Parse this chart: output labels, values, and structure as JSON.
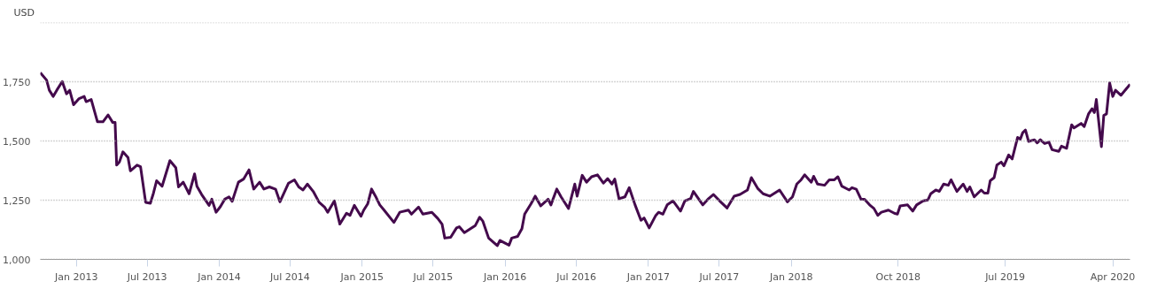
{
  "chart_data": {
    "type": "line",
    "ylabel": "USD",
    "grid": "y",
    "xlim": [
      "2012-10-01",
      "2020-05-15"
    ],
    "xticks": [
      {
        "value": "2013-01-01",
        "label": "Jan 2013"
      },
      {
        "value": "2013-07-01",
        "label": "Jul 2013"
      },
      {
        "value": "2014-01-01",
        "label": "Jan 2014"
      },
      {
        "value": "2014-07-01",
        "label": "Jul 2014"
      },
      {
        "value": "2015-01-01",
        "label": "Jan 2015"
      },
      {
        "value": "2015-07-01",
        "label": "Jul 2015"
      },
      {
        "value": "2016-01-01",
        "label": "Jan 2016"
      },
      {
        "value": "2016-07-01",
        "label": "Jul 2016"
      },
      {
        "value": "2017-01-01",
        "label": "Jan 2017"
      },
      {
        "value": "2017-07-01",
        "label": "Jul 2017"
      },
      {
        "value": "2018-01-01",
        "label": "Jan 2018"
      },
      {
        "value": "2018-10-01",
        "label": "Oct 2018"
      },
      {
        "value": "2019-07-01",
        "label": "Jul 2019"
      },
      {
        "value": "2020-04-01",
        "label": "Apr 2020"
      }
    ],
    "ylim": [
      1000,
      2000
    ],
    "yticks": [
      {
        "value": 1000,
        "label": "1,000"
      },
      {
        "value": 1250,
        "label": "1,250"
      },
      {
        "value": 1500,
        "label": "1,500"
      },
      {
        "value": 1750,
        "label": "1,750"
      },
      {
        "value": 2000,
        "label": null
      }
    ],
    "x": [
      "2012-10-01",
      "2012-10-17",
      "2012-10-24",
      "2012-11-03",
      "2012-11-12",
      "2012-11-26",
      "2012-12-07",
      "2012-12-15",
      "2012-12-25",
      "2013-01-08",
      "2013-01-21",
      "2013-01-26",
      "2013-02-08",
      "2013-02-24",
      "2013-03-10",
      "2013-03-23",
      "2013-04-04",
      "2013-04-10",
      "2013-04-14",
      "2013-04-21",
      "2013-04-30",
      "2013-05-13",
      "2013-05-19",
      "2013-06-05",
      "2013-06-14",
      "2013-06-27",
      "2013-07-09",
      "2013-07-17",
      "2013-07-25",
      "2013-08-08",
      "2013-08-28",
      "2013-09-12",
      "2013-09-19",
      "2013-10-01",
      "2013-10-16",
      "2013-10-30",
      "2013-11-05",
      "2013-11-17",
      "2013-12-06",
      "2013-12-13",
      "2013-12-24",
      "2014-01-04",
      "2014-01-15",
      "2014-01-26",
      "2014-02-03",
      "2014-02-19",
      "2014-03-04",
      "2014-03-18",
      "2014-03-30",
      "2014-04-14",
      "2014-04-25",
      "2014-05-09",
      "2014-05-25",
      "2014-06-05",
      "2014-06-27",
      "2014-07-12",
      "2014-07-23",
      "2014-08-03",
      "2014-08-14",
      "2014-08-29",
      "2014-09-13",
      "2014-09-27",
      "2014-10-05",
      "2014-10-22",
      "2014-11-05",
      "2014-11-22",
      "2014-12-01",
      "2014-12-12",
      "2014-12-29",
      "2015-01-05",
      "2015-01-15",
      "2015-01-25",
      "2015-02-04",
      "2015-02-15",
      "2015-02-26",
      "2015-03-23",
      "2015-04-07",
      "2015-04-29",
      "2015-05-07",
      "2015-05-25",
      "2015-06-05",
      "2015-06-28",
      "2015-07-13",
      "2015-07-24",
      "2015-07-31",
      "2015-08-15",
      "2015-08-30",
      "2015-09-06",
      "2015-09-19",
      "2015-10-17",
      "2015-10-28",
      "2015-11-05",
      "2015-11-20",
      "2015-12-12",
      "2015-12-19",
      "2016-01-11",
      "2016-01-18",
      "2016-02-02",
      "2016-02-13",
      "2016-02-20",
      "2016-03-07",
      "2016-03-18",
      "2016-04-01",
      "2016-04-20",
      "2016-04-27",
      "2016-05-12",
      "2016-05-23",
      "2016-06-11",
      "2016-06-27",
      "2016-07-03",
      "2016-07-16",
      "2016-07-27",
      "2016-08-09",
      "2016-08-24",
      "2016-09-08",
      "2016-09-19",
      "2016-09-30",
      "2016-10-07",
      "2016-10-18",
      "2016-11-02",
      "2016-11-13",
      "2016-11-28",
      "2016-12-13",
      "2016-12-21",
      "2017-01-03",
      "2017-01-20",
      "2017-01-27",
      "2017-02-07",
      "2017-02-18",
      "2017-03-05",
      "2017-03-24",
      "2017-04-04",
      "2017-04-19",
      "2017-04-26",
      "2017-05-20",
      "2017-06-02",
      "2017-06-16",
      "2017-07-02",
      "2017-07-21",
      "2017-08-08",
      "2017-08-23",
      "2017-09-11",
      "2017-09-21",
      "2017-10-07",
      "2017-10-21",
      "2017-11-07",
      "2017-12-02",
      "2017-12-22",
      "2018-01-04",
      "2018-01-15",
      "2018-01-26",
      "2018-02-04",
      "2018-02-21",
      "2018-02-27",
      "2018-03-09",
      "2018-03-27",
      "2018-04-08",
      "2018-04-21",
      "2018-04-30",
      "2018-05-10",
      "2018-05-29",
      "2018-06-05",
      "2018-06-16",
      "2018-06-28",
      "2018-07-07",
      "2018-07-20",
      "2018-07-31",
      "2018-08-10",
      "2018-08-19",
      "2018-09-06",
      "2018-09-21",
      "2018-09-29",
      "2018-10-06",
      "2018-10-25",
      "2018-11-07",
      "2018-11-17",
      "2018-12-04",
      "2018-12-16",
      "2018-12-23",
      "2019-01-05",
      "2019-01-14",
      "2019-01-25",
      "2019-02-06",
      "2019-02-13",
      "2019-02-28",
      "2019-03-16",
      "2019-03-26",
      "2019-04-02",
      "2019-04-13",
      "2019-05-01",
      "2019-05-09",
      "2019-05-18",
      "2019-05-24",
      "2019-06-03",
      "2019-06-10",
      "2019-06-21",
      "2019-06-28",
      "2019-07-10",
      "2019-07-19",
      "2019-08-02",
      "2019-08-09",
      "2019-08-15",
      "2019-08-22",
      "2019-08-30",
      "2019-09-14",
      "2019-09-21",
      "2019-09-29",
      "2019-10-10",
      "2019-10-21",
      "2019-10-29",
      "2019-11-15",
      "2019-11-22",
      "2019-12-05",
      "2019-12-18",
      "2019-12-24",
      "2020-01-11",
      "2020-01-19",
      "2020-01-30",
      "2020-02-08",
      "2020-02-14",
      "2020-02-19",
      "2020-03-03",
      "2020-03-09",
      "2020-03-16",
      "2020-03-24",
      "2020-04-01",
      "2020-04-08",
      "2020-04-22",
      "2020-05-15"
    ],
    "series": [
      {
        "color": "#440a4c",
        "values": [
          1788,
          1757,
          1714,
          1688,
          1714,
          1751,
          1699,
          1714,
          1653,
          1679,
          1688,
          1666,
          1675,
          1581,
          1581,
          1610,
          1578,
          1578,
          1398,
          1411,
          1454,
          1430,
          1374,
          1398,
          1391,
          1241,
          1237,
          1280,
          1332,
          1309,
          1417,
          1387,
          1306,
          1326,
          1277,
          1361,
          1309,
          1274,
          1228,
          1254,
          1199,
          1223,
          1254,
          1264,
          1245,
          1326,
          1339,
          1378,
          1297,
          1326,
          1297,
          1306,
          1296,
          1243,
          1322,
          1336,
          1306,
          1293,
          1318,
          1287,
          1241,
          1221,
          1199,
          1247,
          1149,
          1195,
          1186,
          1228,
          1182,
          1208,
          1234,
          1297,
          1267,
          1230,
          1208,
          1156,
          1199,
          1208,
          1191,
          1221,
          1191,
          1199,
          1173,
          1149,
          1090,
          1093,
          1133,
          1138,
          1113,
          1143,
          1178,
          1162,
          1090,
          1058,
          1080,
          1060,
          1090,
          1097,
          1130,
          1191,
          1234,
          1267,
          1226,
          1254,
          1230,
          1297,
          1264,
          1215,
          1318,
          1267,
          1355,
          1326,
          1349,
          1357,
          1322,
          1341,
          1318,
          1339,
          1256,
          1264,
          1303,
          1230,
          1165,
          1175,
          1133,
          1186,
          1199,
          1191,
          1230,
          1247,
          1204,
          1247,
          1257,
          1287,
          1230,
          1254,
          1274,
          1247,
          1217,
          1267,
          1274,
          1293,
          1345,
          1300,
          1277,
          1267,
          1293,
          1243,
          1264,
          1318,
          1336,
          1357,
          1326,
          1351,
          1318,
          1313,
          1336,
          1336,
          1349,
          1309,
          1293,
          1303,
          1296,
          1254,
          1254,
          1230,
          1215,
          1186,
          1199,
          1208,
          1195,
          1191,
          1226,
          1230,
          1204,
          1230,
          1247,
          1251,
          1277,
          1293,
          1287,
          1318,
          1313,
          1336,
          1287,
          1318,
          1287,
          1306,
          1264,
          1293,
          1280,
          1280,
          1332,
          1345,
          1398,
          1411,
          1395,
          1441,
          1424,
          1515,
          1508,
          1535,
          1546,
          1498,
          1505,
          1492,
          1505,
          1489,
          1495,
          1463,
          1456,
          1478,
          1469,
          1568,
          1555,
          1574,
          1561,
          1614,
          1636,
          1620,
          1675,
          1476,
          1608,
          1614,
          1745,
          1688,
          1714,
          1693,
          1739
        ]
      }
    ]
  }
}
